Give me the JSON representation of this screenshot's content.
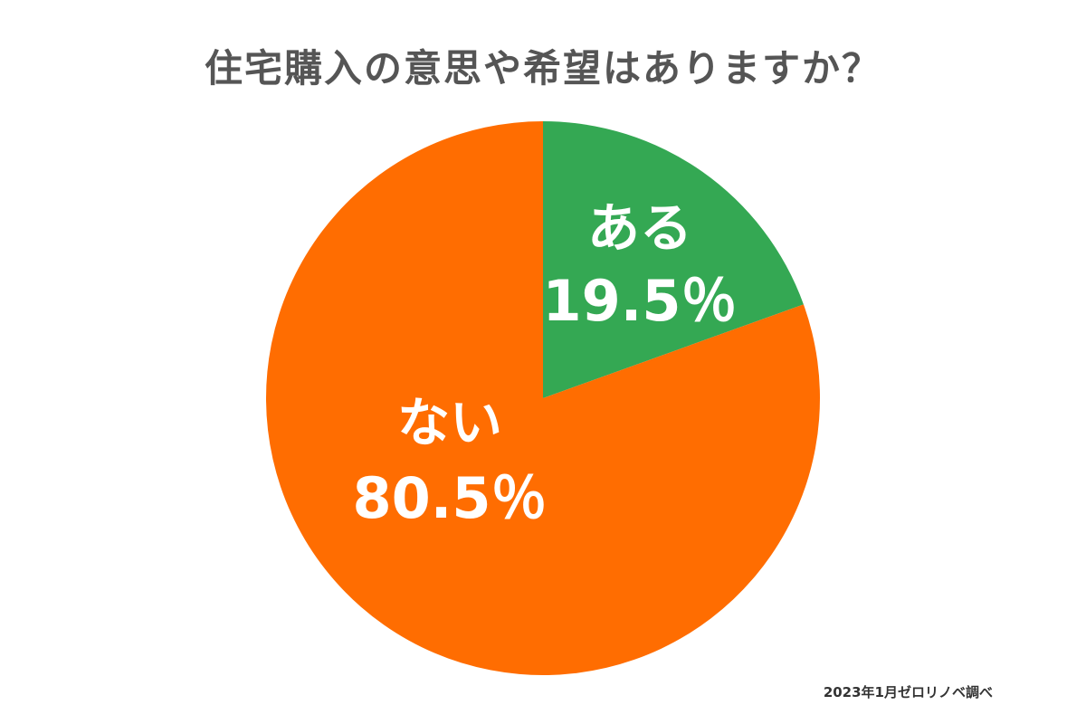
{
  "chart_data": {
    "type": "pie",
    "title": "住宅購入の意思や希望はありますか？",
    "slices": [
      {
        "label": "ある",
        "value": 19.5,
        "value_label": "19.5％",
        "color": "#34A853"
      },
      {
        "label": "ない",
        "value": 80.5,
        "value_label": "80.5％",
        "color": "#FF6D01"
      }
    ],
    "start_angle": "12 o'clock",
    "direction": "clockwise",
    "legend": "none"
  },
  "source_note": "2023年1月ゼロリノベ調べ"
}
